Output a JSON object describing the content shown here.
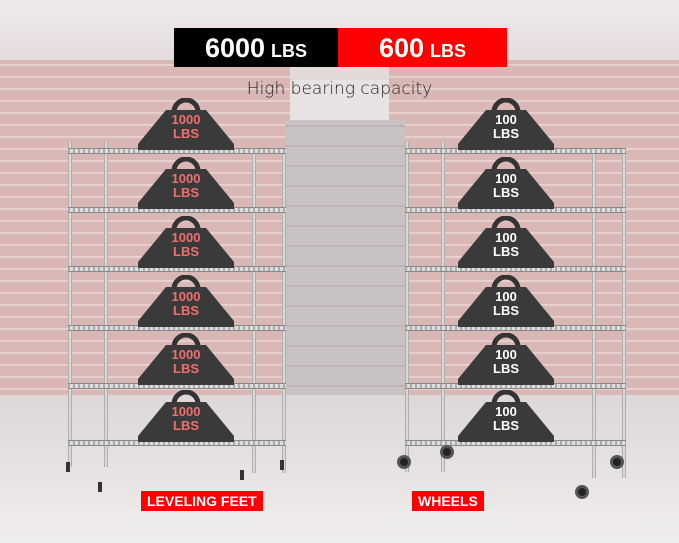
{
  "banner": {
    "left_value": "6000",
    "left_unit": "LBS",
    "right_value": "600",
    "right_unit": "LBS",
    "left_color": "#000000",
    "right_color": "#ff0000"
  },
  "subtitle": "High bearing capacity",
  "left_rack": {
    "weights": [
      "1000\nLBS",
      "1000\nLBS",
      "1000\nLBS",
      "1000\nLBS",
      "1000\nLBS",
      "1000\nLBS"
    ],
    "text_color": "#f07070",
    "label": "LEVELING FEET"
  },
  "right_rack": {
    "weights": [
      "100\nLBS",
      "100\nLBS",
      "100\nLBS",
      "100\nLBS",
      "100\nLBS",
      "100\nLBS"
    ],
    "text_color": "#ffffff",
    "label": "WHEELS"
  }
}
